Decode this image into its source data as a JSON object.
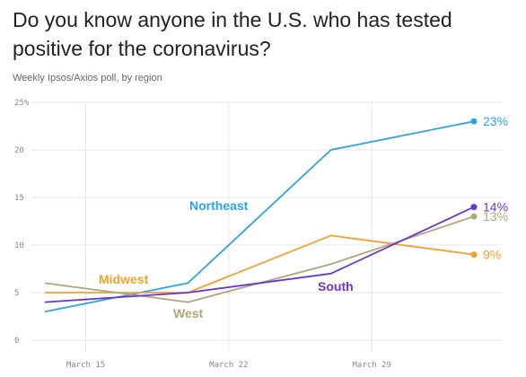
{
  "title": "Do you know anyone in the U.S. who has tested positive for the coronavirus?",
  "subtitle": "Weekly Ipsos/Axios poll, by region",
  "chart_data": {
    "type": "line",
    "x": [
      "2020-03-13",
      "2020-03-20",
      "2020-03-27",
      "2020-04-03"
    ],
    "x_ticks": [
      {
        "date": "2020-03-15",
        "label": "March 15"
      },
      {
        "date": "2020-03-22",
        "label": "March 22"
      },
      {
        "date": "2020-03-29",
        "label": "March 29"
      }
    ],
    "y_ticks": [
      {
        "value": 0,
        "label": "0"
      },
      {
        "value": 5,
        "label": "5"
      },
      {
        "value": 10,
        "label": "10"
      },
      {
        "value": 15,
        "label": "15"
      },
      {
        "value": 20,
        "label": "20"
      },
      {
        "value": 25,
        "label": "25%"
      }
    ],
    "ylim": [
      0,
      25
    ],
    "grid": true,
    "series": [
      {
        "name": "Northeast",
        "color": "#2ba3e6",
        "values": [
          3,
          6,
          20,
          23
        ],
        "end_label": "23%"
      },
      {
        "name": "Midwest",
        "color": "#f2a12e",
        "values": [
          5,
          5,
          11,
          9
        ],
        "end_label": "9%"
      },
      {
        "name": "West",
        "color": "#b5a37a",
        "values": [
          6,
          4,
          8,
          13
        ],
        "end_label": "13%"
      },
      {
        "name": "South",
        "color": "#6a35d6",
        "values": [
          4,
          5,
          7,
          14
        ],
        "end_label": "14%"
      }
    ]
  }
}
